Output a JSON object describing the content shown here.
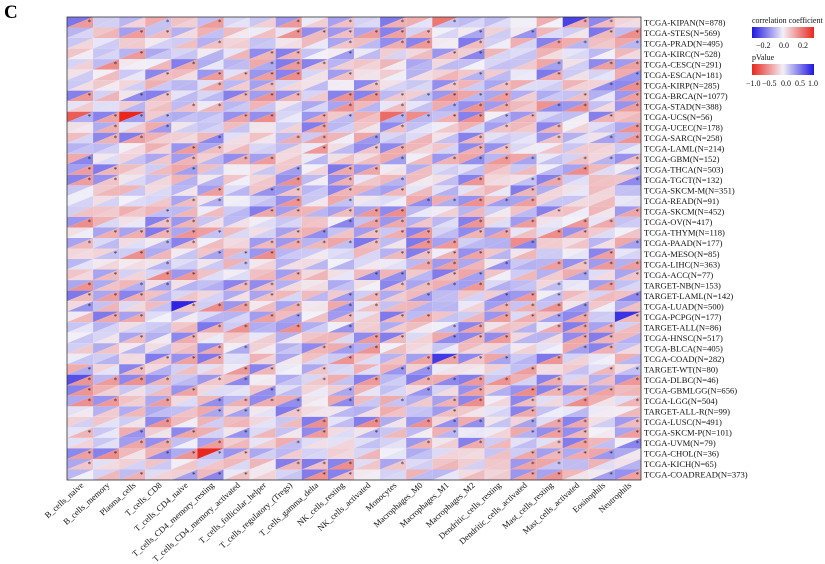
{
  "panel_label": "C",
  "colors": {
    "positive": "#e8281e",
    "negative": "#1f16e0",
    "neutral": "#f2f0f8",
    "frame": "#333333"
  },
  "legend": {
    "corr_title": "correlation coefficient",
    "corr_ticks": [
      "−0.2",
      "0.0",
      "0.2"
    ],
    "p_title": "pValue",
    "p_ticks": [
      "−1.0",
      "−0.5",
      "0.0",
      "0.5",
      "1.0"
    ]
  },
  "chart_data": {
    "type": "heatmap",
    "title": "",
    "xlabel": "",
    "ylabel": "",
    "cell_encoding": "each cell split diagonally: upper-left triangle = correlation coefficient, lower-right triangle = pValue; * marks significance",
    "columns": [
      "B_cells_naive",
      "B_cells_memory",
      "Plasma_cells",
      "T_cells_CD8",
      "T_cells_CD4_naive",
      "T_cells_CD4_memory_resting",
      "T_cells_CD4_memory_activated",
      "T_cells_follicular_helper",
      "T_cells_regulatory_(Tregs)",
      "T_cells_gamma_delta",
      "NK_cells_resting",
      "NK_cells_activated",
      "Monocytes",
      "Macrophages_M0",
      "Macrophages_M1",
      "Macrophages_M2",
      "Dendritic_cells_resting",
      "Dendritic_cells_activated",
      "Mast_cells_resting",
      "Mast_cells_activated",
      "Eosinophils",
      "Neutrophils"
    ],
    "rows": [
      "TCGA-KIPAN(N=878)",
      "TCGA-STES(N=569)",
      "TCGA-PRAD(N=495)",
      "TCGA-KIRC(N=528)",
      "TCGA-CESC(N=291)",
      "TCGA-ESCA(N=181)",
      "TCGA-KIRP(N=285)",
      "TCGA-BRCA(N=1077)",
      "TCGA-STAD(N=388)",
      "TCGA-UCS(N=56)",
      "TCGA-UCEC(N=178)",
      "TCGA-SARC(N=258)",
      "TCGA-LAML(N=214)",
      "TCGA-GBM(N=152)",
      "TCGA-THCA(N=503)",
      "TCGA-TGCT(N=132)",
      "TCGA-SKCM-M(N=351)",
      "TCGA-READ(N=91)",
      "TCGA-SKCM(N=452)",
      "TCGA-OV(N=417)",
      "TCGA-THYM(N=118)",
      "TCGA-PAAD(N=177)",
      "TCGA-MESO(N=85)",
      "TCGA-LIHC(N=363)",
      "TCGA-ACC(N=77)",
      "TARGET-NB(N=153)",
      "TARGET-LAML(N=142)",
      "TCGA-LUAD(N=500)",
      "TCGA-PCPG(N=177)",
      "TARGET-ALL(N=86)",
      "TCGA-HNSC(N=517)",
      "TCGA-BLCA(N=405)",
      "TCGA-COAD(N=282)",
      "TARGET-WT(N=80)",
      "TCGA-DLBC(N=46)",
      "TCGA-GBMLGG(N=656)",
      "TCGA-LGG(N=504)",
      "TARGET-ALL-R(N=99)",
      "TCGA-LUSC(N=491)",
      "TCGA-SKCM-P(N=101)",
      "TCGA-UVM(N=79)",
      "TCGA-CHOL(N=36)",
      "TCGA-KICH(N=65)",
      "TCGA-COADREAD(N=373)"
    ],
    "corr_range": [
      -0.3,
      0.3
    ],
    "p_range": [
      -1.0,
      1.0
    ],
    "highlighted_correlations": [
      {
        "row": "TCGA-KIPAN(N=878)",
        "column": "Macrophages_M1",
        "value": 0.18
      },
      {
        "row": "TCGA-UCS(N=56)",
        "column": "B_cells_naive",
        "value": 0.22
      },
      {
        "row": "TCGA-UCS(N=56)",
        "column": "Plasma_cells",
        "value": 0.3
      },
      {
        "row": "TCGA-UCS(N=56)",
        "column": "Monocytes",
        "value": 0.2
      },
      {
        "row": "TCGA-UCS(N=56)",
        "column": "Macrophages_M0",
        "value": 0.15
      },
      {
        "row": "TCGA-CHOL(N=36)",
        "column": "T_cells_CD4_memory_resting",
        "value": 0.3
      },
      {
        "row": "TCGA-PAAD(N=177)",
        "column": "Dendritic_cells_activated",
        "value": 0.15
      },
      {
        "row": "TCGA-THYM(N=118)",
        "column": "T_cells_CD4_memory_resting",
        "value": 0.12
      },
      {
        "row": "TCGA-STAD(N=388)",
        "column": "Mast_cells_resting",
        "value": 0.14
      },
      {
        "row": "TCGA-LUAD(N=500)",
        "column": "T_cells_CD4_naive",
        "value": -0.28
      },
      {
        "row": "TCGA-PCPG(N=177)",
        "column": "Neutrophils",
        "value": -0.26
      },
      {
        "row": "TCGA-KIPAN(N=878)",
        "column": "Mast_cells_activated",
        "value": -0.24
      },
      {
        "row": "TCGA-DLBC(N=46)",
        "column": "B_cells_naive",
        "value": -0.22
      },
      {
        "row": "TCGA-COAD(N=282)",
        "column": "Macrophages_M1",
        "value": -0.25
      }
    ]
  }
}
